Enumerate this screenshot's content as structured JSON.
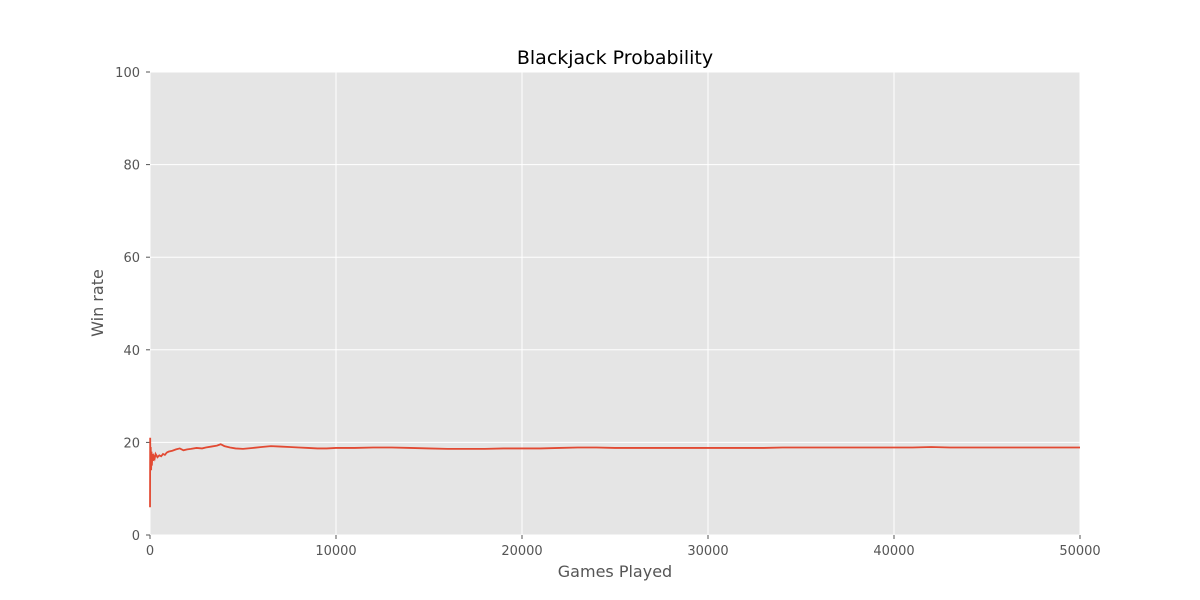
{
  "chart_data": {
    "type": "line",
    "title": "Blackjack Probability",
    "xlabel": "Games Played",
    "ylabel": "Win rate",
    "xlim": [
      0,
      50000
    ],
    "ylim": [
      0,
      100
    ],
    "xticks": [
      0,
      10000,
      20000,
      30000,
      40000,
      50000
    ],
    "yticks": [
      0,
      20,
      40,
      60,
      80,
      100
    ],
    "grid": true,
    "legend": "none",
    "colors": {
      "background": "#e5e5e5",
      "grid": "#ffffff",
      "line": "#e24a33"
    },
    "series": [
      {
        "x": [
          1,
          10,
          20,
          40,
          60,
          80,
          100,
          130,
          160,
          200,
          250,
          300,
          400,
          500,
          600,
          700,
          800,
          900,
          1000,
          1200,
          1400,
          1600,
          1800,
          2000,
          2200,
          2500,
          2800,
          3000,
          3300,
          3600,
          3800,
          4000,
          4300,
          4600,
          5000,
          5500,
          6000,
          6500,
          7000,
          7500,
          8000,
          8500,
          9000,
          9500,
          10000,
          11000,
          12000,
          13000,
          14000,
          15000,
          16000,
          17000,
          18000,
          19000,
          20000,
          21000,
          22000,
          23000,
          24000,
          25000,
          26000,
          27000,
          28000,
          29000,
          30000,
          31000,
          32000,
          33000,
          34000,
          35000,
          36000,
          37000,
          38000,
          39000,
          40000,
          41000,
          42000,
          43000,
          44000,
          45000,
          46000,
          47000,
          48000,
          49000,
          50000
        ],
        "y": [
          6,
          21,
          16,
          19,
          14,
          18,
          15,
          17.5,
          16,
          17,
          16.5,
          17.5,
          16.8,
          17.2,
          17,
          17.5,
          17.3,
          17.8,
          18,
          18.2,
          18.5,
          18.7,
          18.3,
          18.5,
          18.6,
          18.8,
          18.7,
          18.9,
          19.1,
          19.3,
          19.6,
          19.2,
          18.9,
          18.7,
          18.6,
          18.8,
          19,
          19.2,
          19.1,
          19,
          18.9,
          18.8,
          18.7,
          18.7,
          18.8,
          18.8,
          18.9,
          18.9,
          18.8,
          18.7,
          18.6,
          18.6,
          18.6,
          18.7,
          18.7,
          18.7,
          18.8,
          18.9,
          18.9,
          18.8,
          18.8,
          18.8,
          18.8,
          18.8,
          18.8,
          18.8,
          18.8,
          18.8,
          18.9,
          18.9,
          18.9,
          18.9,
          18.9,
          18.9,
          18.9,
          18.9,
          19,
          18.9,
          18.9,
          18.9,
          18.9,
          18.9,
          18.9,
          18.9,
          18.9
        ]
      }
    ]
  }
}
